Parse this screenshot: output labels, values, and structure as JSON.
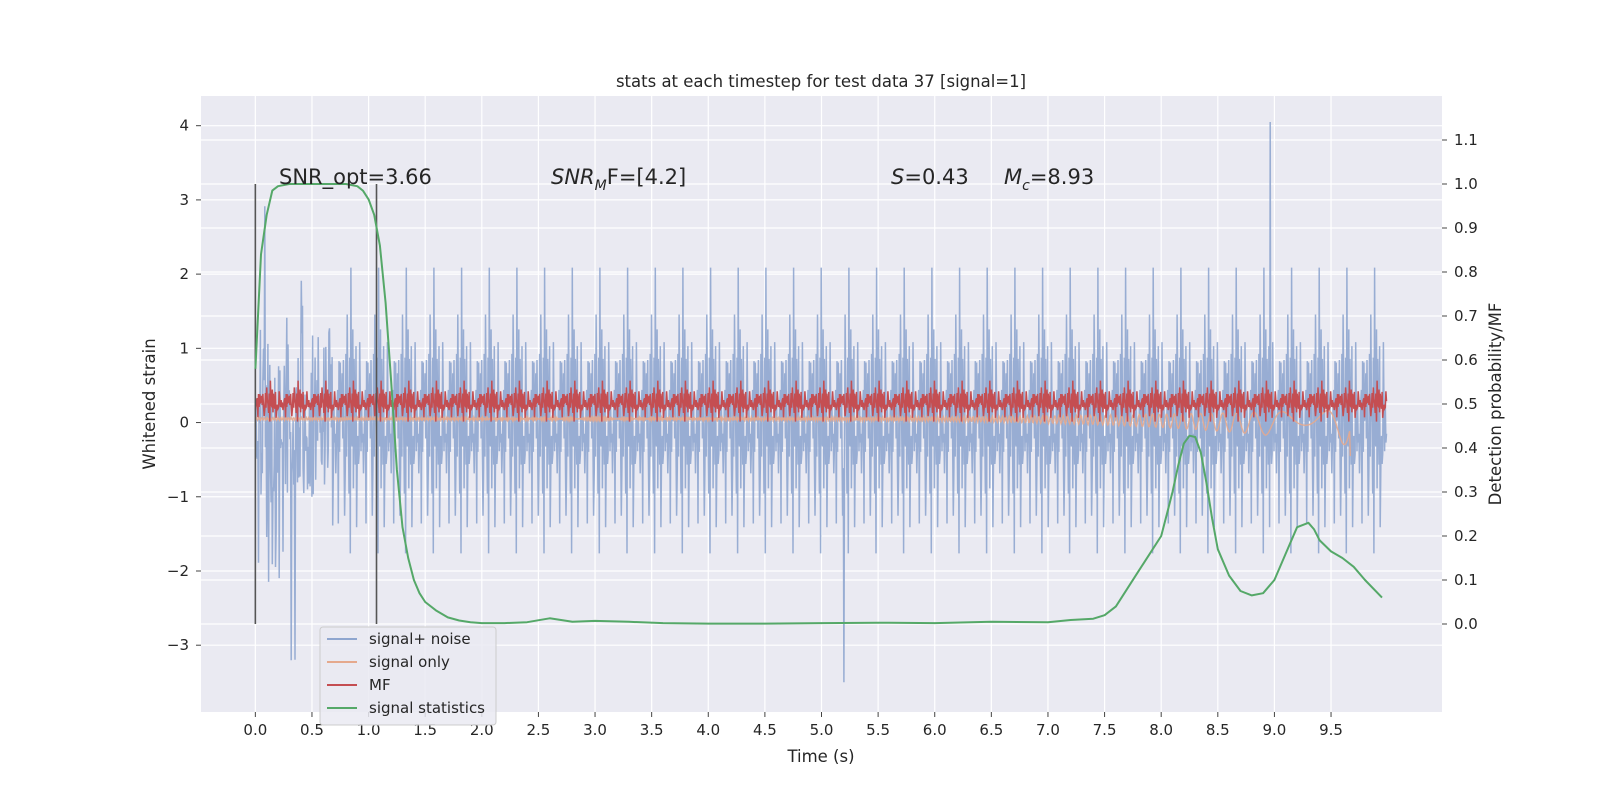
{
  "chart_data": {
    "type": "line",
    "title": "stats at each timestep for test data 37 [signal=1]",
    "xlabel": "Time (s)",
    "ylabel": "Whitened strain",
    "y2label": "Detection probability/MF",
    "xlim": [
      -0.48,
      10.48
    ],
    "ylim": [
      -3.9,
      4.4
    ],
    "y2lim": [
      -0.2,
      1.2
    ],
    "x_ticks": [
      "0.0",
      "0.5",
      "1.0",
      "1.5",
      "2.0",
      "2.5",
      "3.0",
      "3.5",
      "4.0",
      "4.5",
      "5.0",
      "5.5",
      "6.0",
      "6.5",
      "7.0",
      "7.5",
      "8.0",
      "8.5",
      "9.0",
      "9.5"
    ],
    "y_ticks": [
      "4",
      "3",
      "2",
      "1",
      "0",
      "−1",
      "−2",
      "−3"
    ],
    "y2_ticks": [
      "1.1",
      "1.0",
      "0.9",
      "0.8",
      "0.7",
      "0.6",
      "0.5",
      "0.4",
      "0.3",
      "0.2",
      "0.1",
      "0.0"
    ],
    "grid": true,
    "legend_position": "lower-left",
    "annotations": {
      "snr_opt": "SNR_opt=3.66",
      "snr_mf_a": "SNR",
      "snr_mf_sub": "M",
      "snr_mf_b": "F=[4.2]",
      "s_sym": "S",
      "s_val": "=0.43",
      "mc_sym": "M",
      "mc_sub": "c",
      "mc_val": "=8.93"
    },
    "vertical_markers": [
      0.0,
      1.07
    ],
    "series": [
      {
        "name": "signal+ noise",
        "axis": "left",
        "color": "#8fa6cf",
        "x_range": [
          0.0,
          9.99
        ],
        "center": -0.25,
        "spread": 1.6,
        "peak": 4.05,
        "trough": -3.5
      },
      {
        "name": "signal only",
        "axis": "left",
        "color": "#e5a98d",
        "x_range": [
          0.0,
          9.67
        ],
        "end_value": -0.45
      },
      {
        "name": "MF",
        "axis": "left",
        "color": "#c44e52",
        "x_range": [
          0.0,
          9.99
        ],
        "center": 0.23,
        "spread": 0.28
      },
      {
        "name": "signal statistics",
        "axis": "right",
        "color": "#55a868",
        "x": [
          0.0,
          0.05,
          0.1,
          0.15,
          0.2,
          0.3,
          0.4,
          0.5,
          0.6,
          0.7,
          0.8,
          0.9,
          0.95,
          1.0,
          1.05,
          1.1,
          1.15,
          1.2,
          1.25,
          1.3,
          1.35,
          1.4,
          1.45,
          1.5,
          1.6,
          1.7,
          1.8,
          1.9,
          2.0,
          2.2,
          2.4,
          2.6,
          2.8,
          3.0,
          3.3,
          3.6,
          4.0,
          4.5,
          5.0,
          5.5,
          6.0,
          6.5,
          7.0,
          7.2,
          7.4,
          7.5,
          7.6,
          7.7,
          7.8,
          7.9,
          8.0,
          8.05,
          8.1,
          8.15,
          8.2,
          8.25,
          8.3,
          8.35,
          8.4,
          8.45,
          8.5,
          8.6,
          8.7,
          8.8,
          8.9,
          9.0,
          9.1,
          9.2,
          9.3,
          9.35,
          9.4,
          9.5,
          9.6,
          9.7,
          9.8,
          9.95
        ],
        "y": [
          0.58,
          0.84,
          0.93,
          0.985,
          0.995,
          1.0,
          1.0,
          1.0,
          1.0,
          1.0,
          1.0,
          0.995,
          0.985,
          0.965,
          0.93,
          0.86,
          0.73,
          0.55,
          0.35,
          0.22,
          0.15,
          0.1,
          0.07,
          0.05,
          0.03,
          0.015,
          0.008,
          0.004,
          0.002,
          0.002,
          0.004,
          0.013,
          0.005,
          0.007,
          0.005,
          0.002,
          0.001,
          0.001,
          0.002,
          0.003,
          0.002,
          0.005,
          0.004,
          0.009,
          0.012,
          0.02,
          0.04,
          0.08,
          0.12,
          0.16,
          0.2,
          0.25,
          0.3,
          0.36,
          0.41,
          0.428,
          0.425,
          0.39,
          0.32,
          0.24,
          0.17,
          0.11,
          0.075,
          0.065,
          0.07,
          0.1,
          0.16,
          0.22,
          0.23,
          0.215,
          0.19,
          0.165,
          0.15,
          0.13,
          0.1,
          0.06
        ]
      }
    ]
  }
}
